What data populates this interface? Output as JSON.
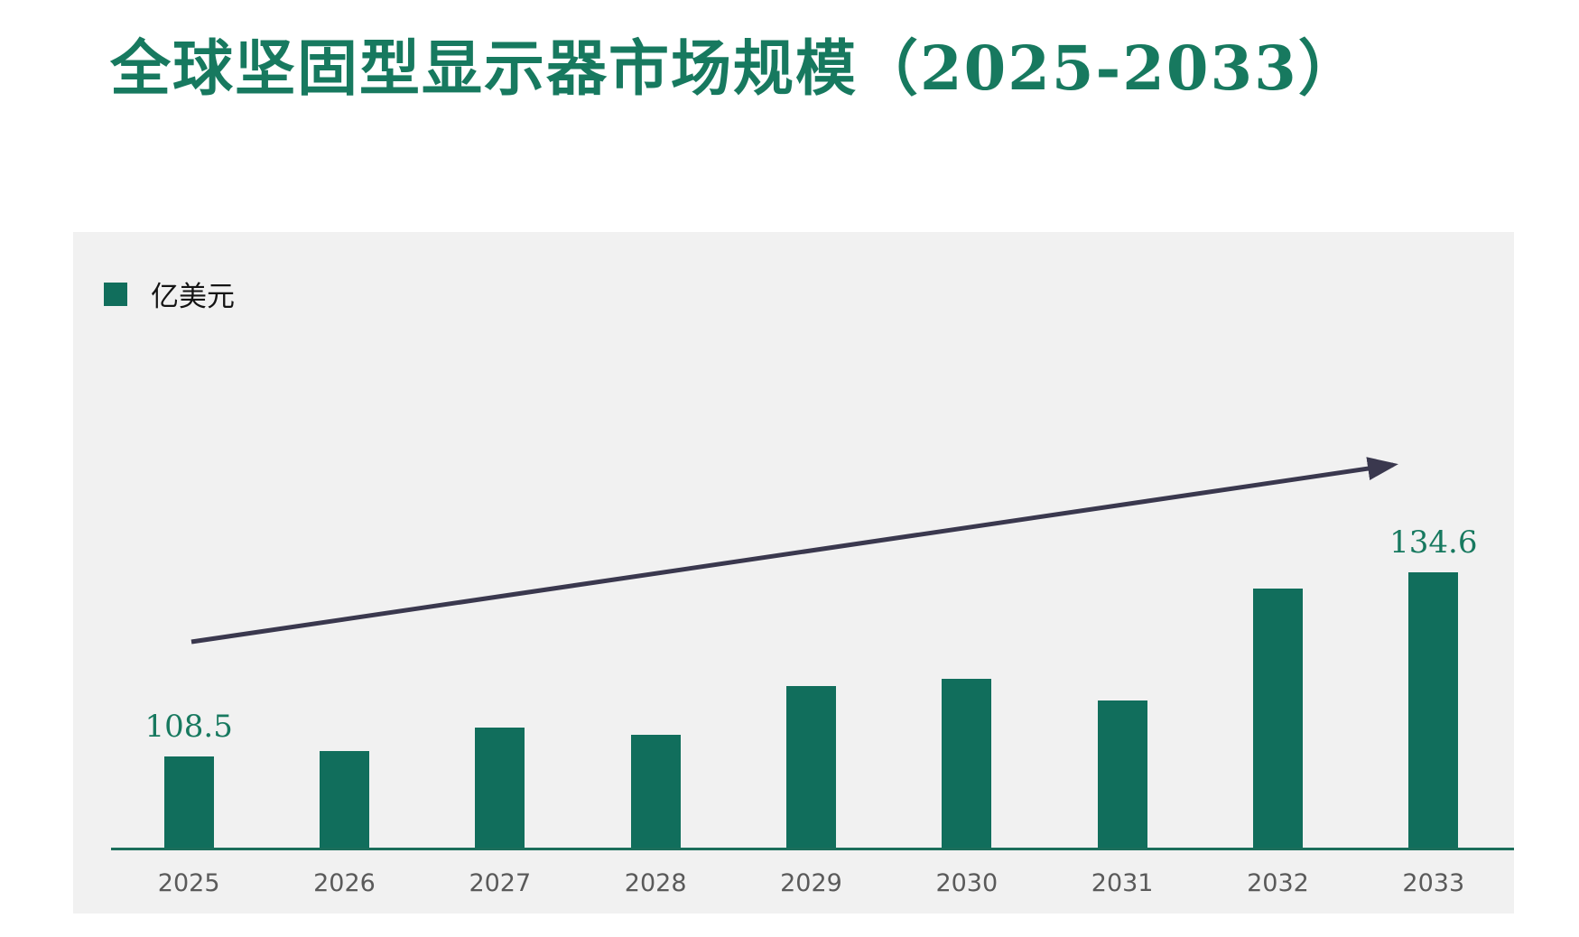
{
  "title": {
    "text": "全球坚固型显示器市场规模（2025-2033）",
    "color": "#17795F"
  },
  "legend": {
    "label": "亿美元",
    "swatch_color": "#116E5C"
  },
  "colors": {
    "page_background": "#FFFFFF",
    "chart_background": "#F1F1F1",
    "bar": "#116E5C",
    "axis_line": "#1B6E5B",
    "year_label": "#5A5A5A",
    "value_label": "#17795F",
    "trend_arrow": "#3A384E"
  },
  "chart_data": {
    "type": "bar",
    "title": "全球坚固型显示器市场规模（2025-2033）",
    "unit": "亿美元",
    "categories": [
      "2025",
      "2026",
      "2027",
      "2028",
      "2029",
      "2030",
      "2031",
      "2032",
      "2033"
    ],
    "values": [
      108.5,
      109.3,
      112.5,
      111.6,
      118.4,
      119.5,
      116.4,
      132.2,
      134.6
    ],
    "data_labels": [
      "108.5",
      "",
      "",
      "",
      "",
      "",
      "",
      "",
      "134.6"
    ],
    "ylim": [
      95.3,
      140
    ],
    "grid": false,
    "legend_position": "top-left",
    "annotations": [
      "upward trend arrow from above 2025 bar to above 2033 bar"
    ]
  }
}
